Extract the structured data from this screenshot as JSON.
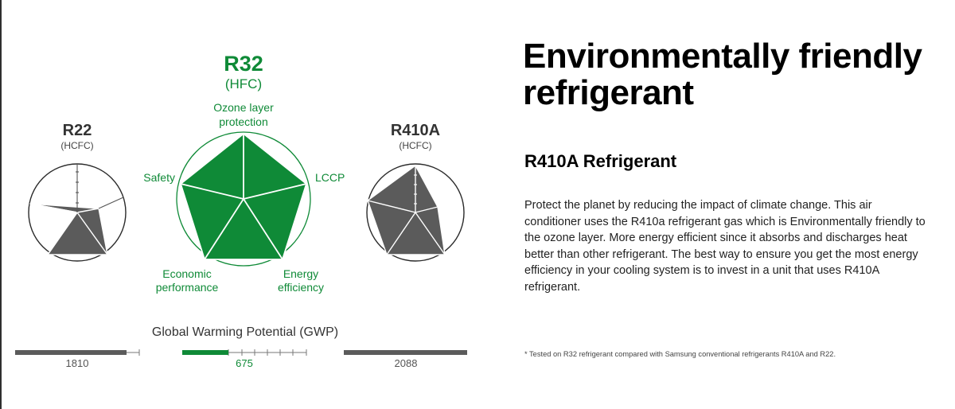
{
  "colors": {
    "green": "#0f8a37",
    "gray": "#5b5b5b",
    "light_gray": "#b8b8b8"
  },
  "graphic": {
    "left": {
      "name": "R22",
      "type": "(HCFC)"
    },
    "center": {
      "name": "R32",
      "type": "(HFC)",
      "labels": {
        "ozone_line1": "Ozone layer",
        "ozone_line2": "protection",
        "safety": "Safety",
        "lccp": "LCCP",
        "economic_line1": "Economic",
        "economic_line2": "performance",
        "energy_line1": "Energy",
        "energy_line2": "efficiency"
      }
    },
    "right": {
      "name": "R410A",
      "type": "(HCFC)"
    },
    "gwp": {
      "title": "Global Warming Potential (GWP)",
      "values": [
        {
          "label": "1810",
          "value": 1810
        },
        {
          "label": "675",
          "value": 675
        },
        {
          "label": "2088",
          "value": 2088
        }
      ]
    }
  },
  "headline": "Environmentally friendly refrigerant",
  "subhead": "R410A Refrigerant",
  "body": "Protect the planet by reducing the impact of climate change. This air conditioner uses the R410a refrigerant gas which is Environmentally friendly to the ozone layer. More energy efficient since it absorbs and discharges heat better than other refrigerant. The best way to ensure you get the most energy efficiency in your cooling system is to invest in a unit that uses R410A refrigerant.",
  "footnote": "* Tested on R32 refrigerant compared with Samsung conventional refrigerants R410A and R22."
}
